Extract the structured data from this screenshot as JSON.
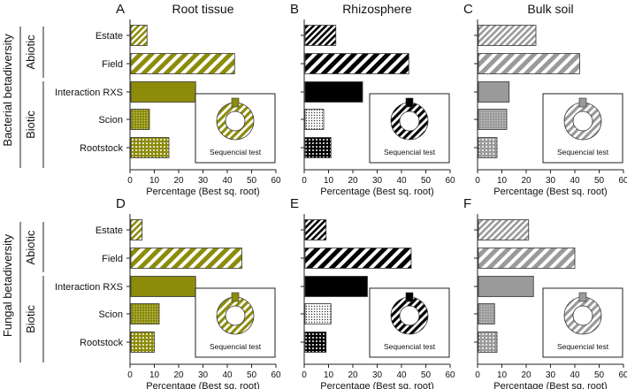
{
  "figure": {
    "row_titles": [
      "Bacterial betadiversity",
      "Fungal betadiversity"
    ],
    "column_titles": [
      "Root tissue",
      "Rhizosphere",
      "Bulk soil"
    ],
    "group_labels": [
      "Abiotic",
      "Biotic"
    ],
    "inset_label": "Sequencial test"
  },
  "colors": {
    "root_tissue": "#8c8c0a",
    "rhizosphere": "#000000",
    "bulk_soil": "#9a9a9a",
    "axis": "#222222"
  },
  "chart_data": [
    {
      "panel": "A",
      "type": "bar",
      "title": "Root tissue",
      "row": "Bacterial betadiversity",
      "categories": [
        "Estate",
        "Field",
        "Interaction RXS",
        "Scion",
        "Rootstock"
      ],
      "values": [
        7,
        43,
        27,
        8,
        16
      ],
      "xlabel": "Percentage (Best sq. root)",
      "xlim": [
        0,
        60
      ],
      "xticks": [
        0,
        10,
        20,
        30,
        40,
        50,
        60
      ],
      "inset": "Sequencial test"
    },
    {
      "panel": "B",
      "type": "bar",
      "title": "Rhizosphere",
      "row": "Bacterial betadiversity",
      "categories": [
        "Estate",
        "Field",
        "Interaction RXS",
        "Scion",
        "Rootstock"
      ],
      "values": [
        13,
        43,
        24,
        8,
        11
      ],
      "xlabel": "Percentage (Best sq. root)",
      "xlim": [
        0,
        60
      ],
      "xticks": [
        0,
        10,
        20,
        30,
        40,
        50,
        60
      ],
      "inset": "Sequencial test"
    },
    {
      "panel": "C",
      "type": "bar",
      "title": "Bulk soil",
      "row": "Bacterial betadiversity",
      "categories": [
        "Estate",
        "Field",
        "Interaction RXS",
        "Scion",
        "Rootstock"
      ],
      "values": [
        24,
        42,
        13,
        12,
        8
      ],
      "xlabel": "Percentage (Best sq. root)",
      "xlim": [
        0,
        60
      ],
      "xticks": [
        0,
        10,
        20,
        30,
        40,
        50,
        60
      ],
      "inset": "Sequencial test"
    },
    {
      "panel": "D",
      "type": "bar",
      "title": "",
      "row": "Fungal betadiversity",
      "categories": [
        "Estate",
        "Field",
        "Interaction RXS",
        "Scion",
        "Rootstock"
      ],
      "values": [
        5,
        46,
        27,
        12,
        10
      ],
      "xlabel": "Percentage (Best sq. root)",
      "xlim": [
        0,
        60
      ],
      "xticks": [
        0,
        10,
        20,
        30,
        40,
        50,
        60
      ],
      "inset": "Sequencial test"
    },
    {
      "panel": "E",
      "type": "bar",
      "title": "",
      "row": "Fungal betadiversity",
      "categories": [
        "Estate",
        "Field",
        "Interaction RXS",
        "Scion",
        "Rootstock"
      ],
      "values": [
        9,
        44,
        26,
        11,
        9
      ],
      "xlabel": "Percentage (Best sq. root)",
      "xlim": [
        0,
        60
      ],
      "xticks": [
        0,
        10,
        20,
        30,
        40,
        50,
        60
      ],
      "inset": "Sequencial test"
    },
    {
      "panel": "F",
      "type": "bar",
      "title": "",
      "row": "Fungal betadiversity",
      "categories": [
        "Estate",
        "Field",
        "Interaction RXS",
        "Scion",
        "Rootstock"
      ],
      "values": [
        21,
        40,
        23,
        7,
        8
      ],
      "xlabel": "Percentage (Best sq. root)",
      "xlim": [
        0,
        60
      ],
      "xticks": [
        0,
        10,
        20,
        30,
        40,
        50,
        60
      ],
      "inset": "Sequencial test"
    }
  ]
}
